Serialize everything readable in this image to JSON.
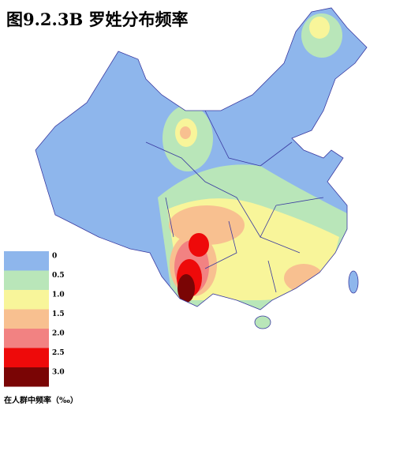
{
  "title": "图9.2.3B  罗姓分布频率",
  "legend": {
    "caption": "在人群中频率（‰）",
    "items": [
      {
        "label": "0",
        "color": "#8eb6ec"
      },
      {
        "label": "0.5",
        "color": "#b9e6b9"
      },
      {
        "label": "1.0",
        "color": "#f8f59a"
      },
      {
        "label": "1.5",
        "color": "#f8c090"
      },
      {
        "label": "2.0",
        "color": "#f28282"
      },
      {
        "label": "2.5",
        "color": "#ee0a0a"
      },
      {
        "label": "3.0",
        "color": "#7a0505"
      }
    ]
  }
}
